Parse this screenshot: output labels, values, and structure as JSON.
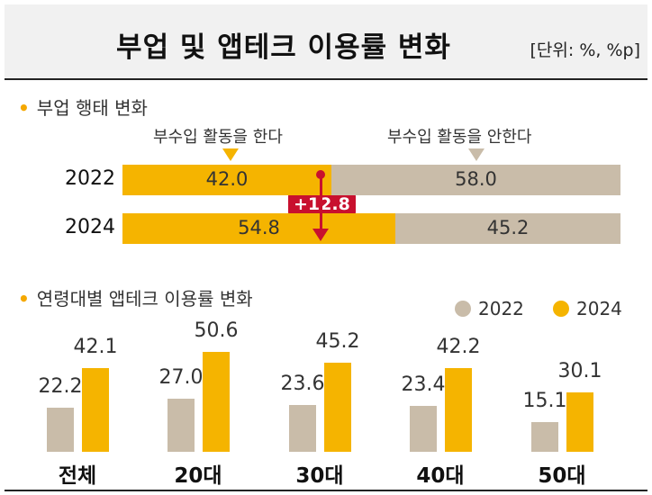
{
  "title": "부업 및 앱테크 이용률 변화",
  "unit": "[단위: %, %p]",
  "colors": {
    "gray": "#c9bca9",
    "gold": "#f5b400",
    "red": "#c8102e",
    "accent_dot": "#f5a800"
  },
  "section1": {
    "label": "부업 행태 변화",
    "callout_left": "부수입 활동을 한다",
    "callout_right": "부수입 활동을 안한다",
    "change_badge": "+12.8"
  },
  "section2": {
    "label": "연령대별 앱테크 이용률 변화"
  },
  "chart_data": [
    {
      "type": "bar",
      "orientation": "horizontal-stacked",
      "categories": [
        "2022",
        "2024"
      ],
      "series": [
        {
          "name": "부수입 활동을 한다",
          "values": [
            42.0,
            54.8
          ]
        },
        {
          "name": "부수입 활동을 안한다",
          "values": [
            58.0,
            45.2
          ]
        }
      ],
      "value_labels": [
        [
          "42.0",
          "54.8"
        ],
        [
          "58.0",
          "45.2"
        ]
      ],
      "annotation": "+12.8",
      "xlim": [
        0,
        100
      ]
    },
    {
      "type": "bar",
      "categories": [
        "전체",
        "20대",
        "30대",
        "40대",
        "50대"
      ],
      "series": [
        {
          "name": "2022",
          "values": [
            22.2,
            27.0,
            23.6,
            23.4,
            15.1
          ]
        },
        {
          "name": "2024",
          "values": [
            42.1,
            50.6,
            45.2,
            42.2,
            30.1
          ]
        }
      ],
      "value_labels": [
        [
          "22.2",
          "27.0",
          "23.6",
          "23.4",
          "15.1"
        ],
        [
          "42.1",
          "50.6",
          "45.2",
          "42.2",
          "30.1"
        ]
      ],
      "ylim": [
        0,
        55
      ],
      "legend": "top-right"
    }
  ]
}
